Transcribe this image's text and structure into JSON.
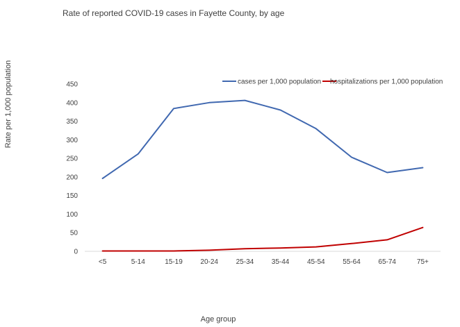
{
  "chart_data": {
    "type": "line",
    "title": "Rate of reported COVID-19 cases in Fayette County, by age",
    "xlabel": "Age group",
    "ylabel": "Rate per 1,000 population",
    "categories": [
      "<5",
      "5-14",
      "15-19",
      "20-24",
      "25-34",
      "35-44",
      "45-54",
      "55-64",
      "65-74",
      "75+"
    ],
    "ylim": [
      0,
      450
    ],
    "yticks": [
      0,
      50,
      100,
      150,
      200,
      250,
      300,
      350,
      400,
      450
    ],
    "grid": false,
    "legend_position": "top-right",
    "series": [
      {
        "name": "cases per 1,000 population",
        "color": "#4068b0",
        "values": [
          196,
          262,
          384,
          400,
          406,
          380,
          330,
          253,
          212,
          225
        ]
      },
      {
        "name": "hospitalizations per 1,000 population",
        "color": "#c00000",
        "values": [
          1,
          1,
          1,
          3,
          7,
          9,
          12,
          21,
          31,
          64
        ]
      }
    ]
  }
}
